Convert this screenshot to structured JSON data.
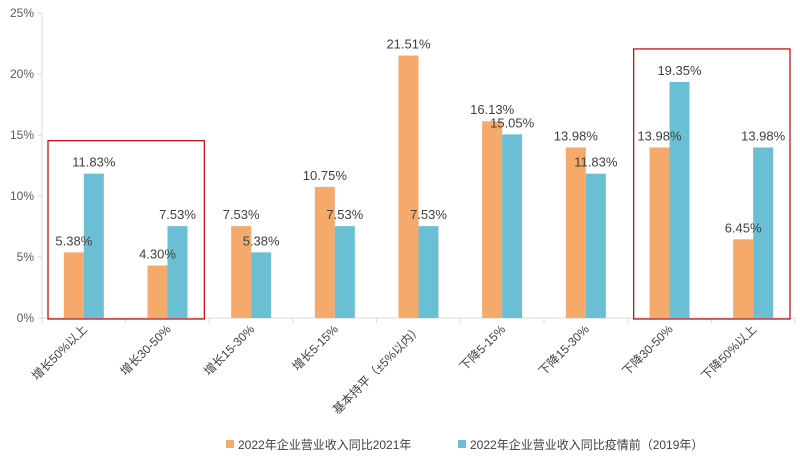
{
  "chart_data": {
    "type": "bar",
    "categories": [
      "增长50%以上",
      "增长30-50%",
      "增长15-30%",
      "增长5-15%",
      "基本持平（±5%以内）",
      "下降5-15%",
      "下降15-30%",
      "下降30-50%",
      "下降50%以上"
    ],
    "series": [
      {
        "name": "2022年企业营业收入同比2021年",
        "color": "#f5a96a",
        "values": [
          5.38,
          4.3,
          7.53,
          10.75,
          21.51,
          16.13,
          13.98,
          13.98,
          6.45
        ],
        "labels": [
          "5.38%",
          "4.30%",
          "7.53%",
          "10.75%",
          "21.51%",
          "16.13%",
          "13.98%",
          "13.98%",
          "6.45%"
        ]
      },
      {
        "name": "2022年企业营业收入同比疫情前（2019年）",
        "color": "#6bbfd4",
        "values": [
          11.83,
          7.53,
          5.38,
          7.53,
          7.53,
          15.05,
          11.83,
          19.35,
          13.98
        ],
        "labels": [
          "11.83%",
          "7.53%",
          "5.38%",
          "7.53%",
          "7.53%",
          "15.05%",
          "11.83%",
          "19.35%",
          "13.98%"
        ]
      }
    ],
    "y_ticks": [
      "0%",
      "5%",
      "10%",
      "15%",
      "20%",
      "25%"
    ],
    "ylim": [
      0,
      25
    ],
    "grid": false,
    "legend_position": "bottom",
    "highlight_boxes": [
      {
        "categories": [
          0,
          1
        ],
        "color": "#c00000"
      },
      {
        "categories": [
          7,
          8
        ],
        "color": "#c00000"
      }
    ]
  }
}
